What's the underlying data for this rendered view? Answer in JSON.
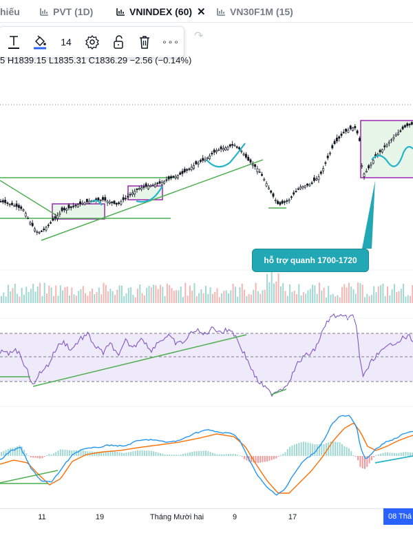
{
  "tabs": [
    {
      "label": "hiếu",
      "active": false
    },
    {
      "label": "PVT (1D)",
      "active": false
    },
    {
      "label": "VNINDEX (60)",
      "active": true
    },
    {
      "label": "VN30F1M (15)",
      "active": false
    }
  ],
  "toolbar": {
    "items": [
      "text-tool",
      "fill-color",
      "font-size",
      "settings",
      "lock",
      "delete",
      "more"
    ],
    "font_size": "14",
    "more_label": "∘∘∘"
  },
  "ohlc_text": "5 H1839.15  L1835.31  C1836.29  −2.56 (−0.14%)",
  "annotation": {
    "text": "hỗ trợ quanh 1700-1720"
  },
  "chart_data": {
    "type": "candlestick",
    "panes": [
      "price",
      "volume",
      "rsi",
      "macd"
    ],
    "x_ticks": [
      "11",
      "19",
      "Tháng Mười hai",
      "9",
      "17"
    ],
    "x_cursor_label": "08 Thá",
    "price": {
      "last": {
        "high": 1839.15,
        "low": 1835.31,
        "close": 1836.29,
        "change": -2.56,
        "change_pct": -0.14
      },
      "support_zone": [
        1700,
        1720
      ],
      "dotted_level": "horizontal dotted line above price"
    },
    "rsi": {
      "levels": [
        "upper dashed",
        "middle dashed",
        "lower dashed"
      ],
      "band": "shaded"
    },
    "macd": {
      "lines": [
        "MACD",
        "Signal"
      ],
      "histogram": true
    },
    "colors": {
      "up": "#26a69a",
      "down": "#ef5350",
      "candle": "#131722",
      "trend": "#4caf50",
      "box": "#9c27b0",
      "box_fill": "#e8f5e9",
      "cyan": "#22b5c9",
      "rsi_line": "#7e57c2",
      "macd": "#2196f3",
      "signal": "#ff6d00",
      "callout": "#22a7b5"
    }
  }
}
